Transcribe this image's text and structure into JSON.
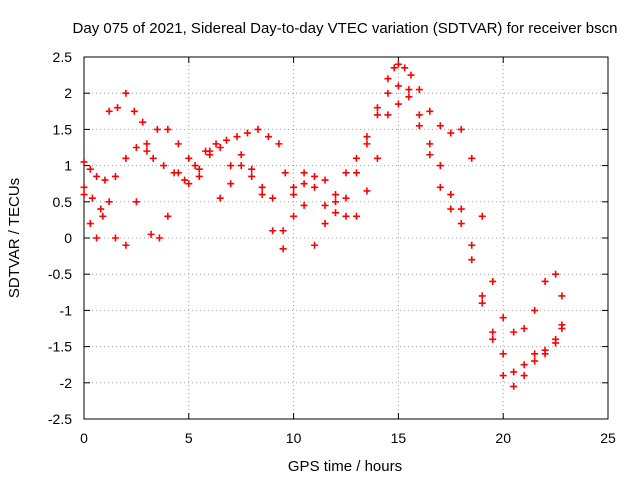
{
  "chart_data": {
    "type": "scatter",
    "title": "Day 075 of 2021, Sidereal Day-to-day VTEC variation (SDTVAR) for receiver bscn",
    "xlabel": "GPS time / hours",
    "ylabel": "SDTVAR / TECUs",
    "xlim": [
      0,
      25
    ],
    "ylim": [
      -2.5,
      2.5
    ],
    "xticks": [
      0,
      5,
      10,
      15,
      20,
      25
    ],
    "yticks": [
      -2.5,
      -2,
      -1.5,
      -1,
      -0.5,
      0,
      0.5,
      1,
      1.5,
      2,
      2.5
    ],
    "grid": true,
    "marker": "+",
    "series_color": "#ff0000",
    "series": [
      {
        "x": [
          0.0,
          0.3,
          0.6,
          1.0,
          1.5,
          2.0,
          2.5,
          3.0,
          3.3,
          3.8,
          4.3,
          4.8,
          5.3,
          5.8,
          6.3,
          6.8,
          7.3,
          7.8,
          8.3,
          8.8,
          9.3,
          9.6,
          10.0,
          10.5,
          11.0,
          11.5,
          12.0,
          12.5,
          13.0,
          13.5,
          14.0,
          14.5,
          14.8,
          15.0,
          15.3,
          15.6,
          16.0,
          16.5,
          17.0,
          17.5,
          18.0,
          18.5,
          19.0,
          19.5,
          20.0,
          20.5,
          21.0,
          21.5,
          22.0,
          22.5,
          22.8
        ],
        "y": [
          1.05,
          0.95,
          0.85,
          0.8,
          0.85,
          1.1,
          1.25,
          1.2,
          1.1,
          1.0,
          0.9,
          0.8,
          1.0,
          1.2,
          1.3,
          1.35,
          1.4,
          1.45,
          1.5,
          1.4,
          1.3,
          0.9,
          0.6,
          0.75,
          0.85,
          0.8,
          0.6,
          0.9,
          1.1,
          1.4,
          1.8,
          2.2,
          2.35,
          2.4,
          2.35,
          2.25,
          2.05,
          1.75,
          1.55,
          1.45,
          1.5,
          1.1,
          0.3,
          -0.6,
          -1.1,
          -1.3,
          -1.25,
          -1.0,
          -0.6,
          -0.5,
          -0.8
        ]
      },
      {
        "x": [
          0.0,
          0.4,
          0.8,
          1.2,
          1.6,
          2.0,
          2.4,
          2.8,
          3.2,
          3.6,
          4.0,
          4.5,
          5.0,
          5.5,
          6.0,
          6.5,
          7.0,
          7.5,
          8.0,
          8.5,
          9.0,
          9.5,
          10.0,
          10.5,
          11.0,
          11.5,
          12.0,
          12.5,
          13.0,
          13.5,
          14.0,
          14.5,
          15.0,
          15.5,
          16.0,
          16.5,
          17.0,
          17.5,
          18.0,
          18.5,
          19.0,
          19.5,
          20.0,
          20.5,
          21.0,
          21.5,
          22.0,
          22.5,
          22.8
        ],
        "y": [
          0.7,
          0.55,
          0.4,
          1.75,
          1.8,
          2.0,
          1.75,
          1.6,
          0.05,
          0.0,
          0.3,
          0.9,
          1.1,
          0.95,
          1.2,
          1.25,
          1.0,
          1.15,
          0.95,
          0.6,
          0.1,
          -0.15,
          0.7,
          0.9,
          0.7,
          0.45,
          0.5,
          0.3,
          0.9,
          1.3,
          1.7,
          2.0,
          2.1,
          1.95,
          1.7,
          1.3,
          1.0,
          0.6,
          0.4,
          -0.1,
          -0.8,
          -1.4,
          -1.9,
          -2.05,
          -1.9,
          -1.7,
          -1.6,
          -1.45,
          -1.2
        ]
      },
      {
        "x": [
          0.0,
          0.3,
          0.6,
          0.9,
          1.2,
          1.5,
          2.0,
          2.5,
          3.0,
          3.5,
          4.0,
          4.5,
          5.0,
          5.5,
          6.0,
          6.5,
          7.0,
          7.5,
          8.0,
          8.5,
          9.0,
          9.5,
          10.0,
          10.5,
          11.0,
          11.5,
          12.0,
          12.5,
          13.0,
          13.5,
          14.0,
          14.5,
          15.0,
          15.5,
          16.0,
          16.5,
          17.0,
          17.5,
          18.0,
          18.5,
          19.0,
          19.5,
          20.0,
          20.5,
          21.0,
          21.5,
          22.0,
          22.5,
          22.8
        ],
        "y": [
          0.6,
          0.2,
          0.0,
          0.3,
          0.5,
          0.0,
          -0.1,
          0.5,
          1.3,
          1.5,
          1.5,
          1.3,
          0.75,
          0.85,
          1.15,
          0.55,
          0.75,
          1.0,
          0.85,
          0.7,
          0.55,
          0.1,
          0.3,
          0.45,
          -0.1,
          0.2,
          0.35,
          0.55,
          0.3,
          0.65,
          1.1,
          1.7,
          1.85,
          2.05,
          1.55,
          1.15,
          0.7,
          0.4,
          0.2,
          -0.3,
          -0.9,
          -1.3,
          -1.6,
          -1.85,
          -1.75,
          -1.6,
          -1.55,
          -1.4,
          -1.25
        ]
      }
    ]
  }
}
